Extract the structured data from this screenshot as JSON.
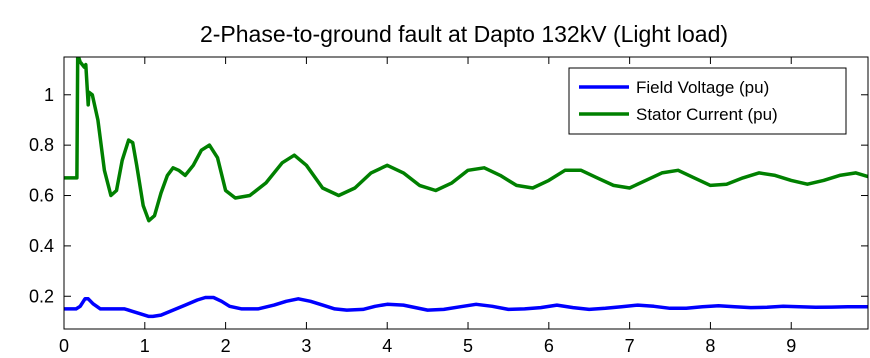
{
  "chart_data": {
    "type": "line",
    "title": "2-Phase-to-ground fault at Dapto 132kV (Light load)",
    "xlabel": "",
    "ylabel": "",
    "xlim": [
      0,
      9.95
    ],
    "ylim": [
      0.07,
      1.15
    ],
    "xticks": [
      0,
      1,
      2,
      3,
      4,
      5,
      6,
      7,
      8,
      9
    ],
    "yticks": [
      0.2,
      0.4,
      0.6,
      0.8,
      1
    ],
    "ytick_labels": [
      "0.2",
      "0.4",
      "0.6",
      "0.8",
      "1"
    ],
    "grid": false,
    "legend_position": "top-right",
    "series": [
      {
        "name": "Field Voltage (pu)",
        "color": "#0000ff",
        "x": [
          0,
          0.15,
          0.2,
          0.26,
          0.3,
          0.36,
          0.45,
          0.55,
          0.65,
          0.75,
          0.85,
          0.95,
          1.05,
          1.1,
          1.2,
          1.35,
          1.5,
          1.65,
          1.75,
          1.85,
          1.95,
          2.05,
          2.2,
          2.4,
          2.6,
          2.75,
          2.9,
          3.05,
          3.2,
          3.35,
          3.5,
          3.7,
          3.85,
          4.0,
          4.2,
          4.35,
          4.5,
          4.7,
          4.9,
          5.1,
          5.3,
          5.5,
          5.7,
          5.9,
          6.1,
          6.3,
          6.5,
          6.7,
          6.9,
          7.1,
          7.3,
          7.5,
          7.7,
          7.9,
          8.1,
          8.3,
          8.5,
          8.7,
          8.9,
          9.1,
          9.3,
          9.5,
          9.7,
          9.95
        ],
        "y": [
          0.15,
          0.15,
          0.16,
          0.19,
          0.19,
          0.17,
          0.15,
          0.15,
          0.15,
          0.15,
          0.14,
          0.13,
          0.12,
          0.12,
          0.125,
          0.145,
          0.165,
          0.185,
          0.195,
          0.195,
          0.18,
          0.16,
          0.15,
          0.15,
          0.165,
          0.18,
          0.19,
          0.18,
          0.165,
          0.15,
          0.145,
          0.148,
          0.16,
          0.168,
          0.165,
          0.155,
          0.145,
          0.148,
          0.158,
          0.168,
          0.16,
          0.148,
          0.15,
          0.155,
          0.165,
          0.155,
          0.148,
          0.152,
          0.158,
          0.165,
          0.16,
          0.152,
          0.152,
          0.158,
          0.162,
          0.158,
          0.155,
          0.156,
          0.16,
          0.158,
          0.156,
          0.157,
          0.158,
          0.158
        ]
      },
      {
        "name": "Stator Current (pu)",
        "color": "#008000",
        "x": [
          0,
          0.16,
          0.17,
          0.2,
          0.25,
          0.27,
          0.3,
          0.31,
          0.35,
          0.42,
          0.5,
          0.58,
          0.65,
          0.72,
          0.8,
          0.85,
          0.9,
          0.98,
          1.05,
          1.12,
          1.2,
          1.28,
          1.35,
          1.42,
          1.5,
          1.6,
          1.7,
          1.8,
          1.9,
          2.0,
          2.12,
          2.3,
          2.5,
          2.7,
          2.85,
          3.0,
          3.2,
          3.4,
          3.6,
          3.8,
          4.0,
          4.2,
          4.4,
          4.6,
          4.8,
          5.0,
          5.2,
          5.4,
          5.6,
          5.8,
          6.0,
          6.2,
          6.4,
          6.6,
          6.8,
          7.0,
          7.2,
          7.4,
          7.6,
          7.8,
          8.0,
          8.2,
          8.4,
          8.6,
          8.8,
          9.0,
          9.2,
          9.4,
          9.6,
          9.8,
          9.95
        ],
        "y": [
          0.67,
          0.67,
          1.16,
          1.13,
          1.11,
          1.12,
          0.96,
          1.01,
          1.0,
          0.9,
          0.7,
          0.6,
          0.62,
          0.74,
          0.82,
          0.81,
          0.72,
          0.56,
          0.5,
          0.52,
          0.61,
          0.68,
          0.71,
          0.7,
          0.68,
          0.72,
          0.78,
          0.8,
          0.75,
          0.62,
          0.59,
          0.6,
          0.65,
          0.73,
          0.76,
          0.72,
          0.63,
          0.6,
          0.63,
          0.69,
          0.72,
          0.69,
          0.64,
          0.62,
          0.65,
          0.7,
          0.71,
          0.68,
          0.64,
          0.63,
          0.66,
          0.7,
          0.7,
          0.67,
          0.64,
          0.63,
          0.66,
          0.69,
          0.7,
          0.67,
          0.64,
          0.645,
          0.67,
          0.69,
          0.68,
          0.66,
          0.645,
          0.66,
          0.68,
          0.69,
          0.675
        ]
      }
    ]
  }
}
